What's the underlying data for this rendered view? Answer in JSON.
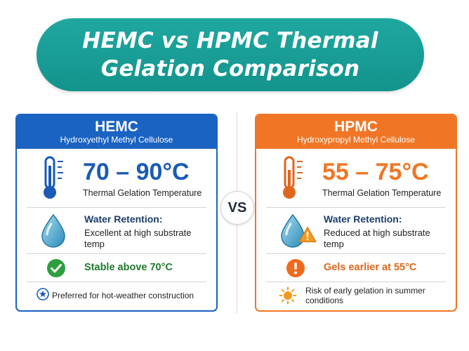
{
  "title": {
    "line1": "HEMC vs HPMC Thermal",
    "line2": "Gelation Comparison"
  },
  "vs_label": "VS",
  "hemc": {
    "name": "HEMC",
    "full_name": "Hydroxyethyl Methyl Cellulose",
    "temp_range": "70 – 90°C",
    "temp_label": "Thermal Gelation Temperature",
    "water_title": "Water Retention:",
    "water_desc": "Excellent at high substrate temp",
    "status": "Stable above 70°C",
    "note": "Preferred for hot-weather construction",
    "accent_color": "#1a63c2"
  },
  "hpmc": {
    "name": "HPMC",
    "full_name": "Hydroxypropyl Methyl Cellulose",
    "temp_range": "55 – 75°C",
    "temp_label": "Thermal Gelation Temperature",
    "water_title": "Water Retention:",
    "water_desc": "Reduced at high substrate temp",
    "status": "Gels earlier at 55°C",
    "note": "Risk of early gelation in summer conditions",
    "accent_color": "#f07626"
  },
  "icons": {
    "thermometer": "thermometer-icon",
    "water_drop": "water-drop-icon",
    "warning": "warning-icon",
    "check": "check-circle-icon",
    "alert": "alert-circle-icon",
    "star": "star-badge-icon",
    "sun": "sun-icon"
  }
}
